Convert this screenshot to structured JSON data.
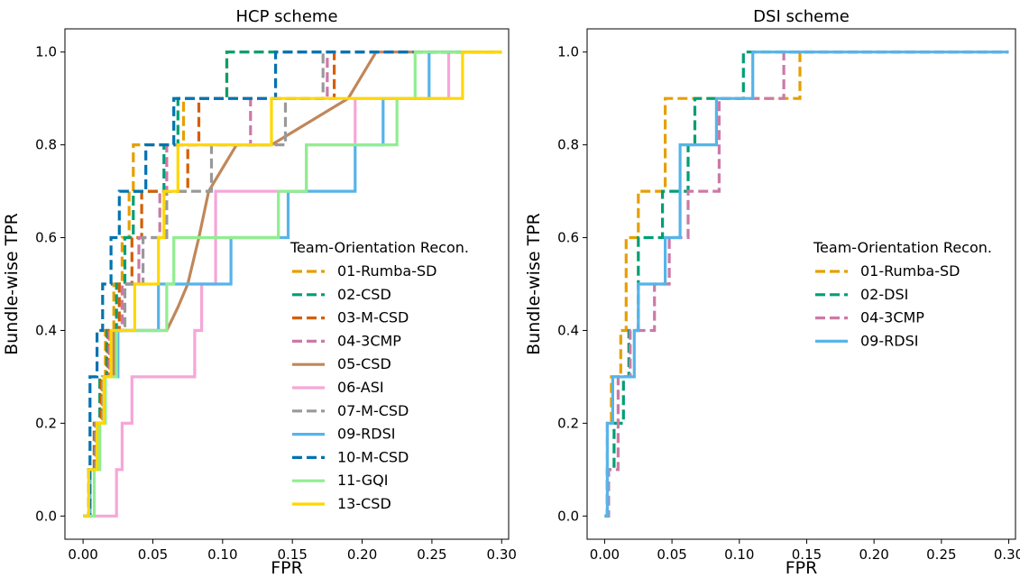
{
  "chart_data": [
    {
      "type": "line",
      "title": "HCP scheme",
      "xlabel": "FPR",
      "ylabel": "Bundle-wise TPR",
      "xlim": [
        -0.013,
        0.305
      ],
      "ylim": [
        -0.05,
        1.05
      ],
      "xticks": [
        "0.00",
        "0.05",
        "0.10",
        "0.15",
        "0.20",
        "0.25",
        "0.30"
      ],
      "yticks": [
        "0.0",
        "0.2",
        "0.4",
        "0.6",
        "0.8",
        "1.0"
      ],
      "grid": false,
      "legend_title": "Team-Orientation Recon.",
      "legend_position": "center-right",
      "series": [
        {
          "name": "01-Rumba-SD",
          "color": "#E69F00",
          "dash": true,
          "x": [
            0,
            0.004,
            0.004,
            0.008,
            0.008,
            0.012,
            0.012,
            0.016,
            0.016,
            0.022,
            0.022,
            0.028,
            0.028,
            0.033,
            0.033,
            0.036,
            0.036,
            0.04,
            0.04,
            0.072,
            0.072,
            0.103,
            0.103,
            0.3
          ],
          "y": [
            0,
            0,
            0.1,
            0.1,
            0.2,
            0.2,
            0.3,
            0.3,
            0.4,
            0.4,
            0.5,
            0.5,
            0.6,
            0.6,
            0.7,
            0.7,
            0.8,
            0.8,
            0.8,
            0.8,
            0.9,
            0.9,
            1.0,
            1.0
          ]
        },
        {
          "name": "02-CSD",
          "color": "#009E73",
          "dash": true,
          "x": [
            0,
            0.004,
            0.004,
            0.008,
            0.008,
            0.012,
            0.012,
            0.017,
            0.017,
            0.024,
            0.024,
            0.03,
            0.03,
            0.036,
            0.036,
            0.058,
            0.058,
            0.068,
            0.068,
            0.103,
            0.103,
            0.3
          ],
          "y": [
            0,
            0,
            0.1,
            0.1,
            0.2,
            0.2,
            0.3,
            0.3,
            0.4,
            0.4,
            0.5,
            0.5,
            0.6,
            0.6,
            0.7,
            0.7,
            0.8,
            0.8,
            0.9,
            0.9,
            1.0,
            1.0
          ]
        },
        {
          "name": "03-M-CSD",
          "color": "#D55E00",
          "dash": true,
          "x": [
            0,
            0.004,
            0.004,
            0.008,
            0.008,
            0.013,
            0.013,
            0.018,
            0.018,
            0.026,
            0.026,
            0.035,
            0.035,
            0.042,
            0.042,
            0.075,
            0.075,
            0.083,
            0.083,
            0.18,
            0.18,
            0.195,
            0.195,
            0.3
          ],
          "y": [
            0,
            0,
            0.1,
            0.1,
            0.2,
            0.2,
            0.3,
            0.3,
            0.4,
            0.4,
            0.5,
            0.5,
            0.6,
            0.6,
            0.7,
            0.7,
            0.8,
            0.8,
            0.9,
            0.9,
            1.0,
            1.0,
            1.0,
            1.0
          ]
        },
        {
          "name": "04-3CMP",
          "color": "#CC79A7",
          "dash": true,
          "x": [
            0,
            0.004,
            0.004,
            0.009,
            0.009,
            0.014,
            0.014,
            0.019,
            0.019,
            0.028,
            0.028,
            0.04,
            0.04,
            0.055,
            0.055,
            0.06,
            0.06,
            0.12,
            0.12,
            0.175,
            0.175,
            0.3
          ],
          "y": [
            0,
            0,
            0.1,
            0.1,
            0.2,
            0.2,
            0.3,
            0.3,
            0.4,
            0.4,
            0.5,
            0.5,
            0.6,
            0.6,
            0.7,
            0.7,
            0.8,
            0.8,
            0.9,
            0.9,
            1.0,
            1.0
          ]
        },
        {
          "name": "05-CSD",
          "color": "#C0875A",
          "dash": false,
          "x": [
            0,
            0.005,
            0.005,
            0.01,
            0.01,
            0.015,
            0.015,
            0.022,
            0.022,
            0.06,
            0.068,
            0.075,
            0.083,
            0.09,
            0.11,
            0.135,
            0.19,
            0.21,
            0.3
          ],
          "y": [
            0,
            0,
            0.1,
            0.1,
            0.2,
            0.2,
            0.3,
            0.3,
            0.4,
            0.4,
            0.45,
            0.5,
            0.6,
            0.7,
            0.8,
            0.8,
            0.9,
            1.0,
            1.0
          ]
        },
        {
          "name": "06-ASI",
          "color": "#F6A6D8",
          "dash": false,
          "x": [
            0,
            0.024,
            0.024,
            0.028,
            0.028,
            0.035,
            0.035,
            0.075,
            0.075,
            0.08,
            0.08,
            0.085,
            0.085,
            0.095,
            0.095,
            0.16,
            0.16,
            0.195,
            0.195,
            0.262,
            0.262,
            0.3
          ],
          "y": [
            0,
            0,
            0.1,
            0.1,
            0.2,
            0.2,
            0.3,
            0.3,
            0.3,
            0.3,
            0.4,
            0.4,
            0.5,
            0.5,
            0.7,
            0.7,
            0.8,
            0.8,
            0.9,
            0.9,
            1.0,
            1.0
          ]
        },
        {
          "name": "07-M-CSD",
          "color": "#999999",
          "dash": true,
          "x": [
            0,
            0.004,
            0.004,
            0.009,
            0.009,
            0.014,
            0.014,
            0.02,
            0.02,
            0.03,
            0.03,
            0.043,
            0.043,
            0.06,
            0.06,
            0.092,
            0.092,
            0.145,
            0.145,
            0.172,
            0.172,
            0.3
          ],
          "y": [
            0,
            0,
            0.1,
            0.1,
            0.2,
            0.2,
            0.3,
            0.3,
            0.4,
            0.4,
            0.5,
            0.5,
            0.6,
            0.6,
            0.7,
            0.7,
            0.8,
            0.8,
            0.9,
            0.9,
            1.0,
            1.0
          ]
        },
        {
          "name": "09-RDSI",
          "color": "#56B4E9",
          "dash": false,
          "x": [
            0,
            0.005,
            0.005,
            0.01,
            0.01,
            0.016,
            0.016,
            0.025,
            0.025,
            0.054,
            0.054,
            0.106,
            0.106,
            0.147,
            0.147,
            0.195,
            0.195,
            0.215,
            0.215,
            0.248,
            0.248,
            0.3
          ],
          "y": [
            0,
            0,
            0.1,
            0.1,
            0.2,
            0.2,
            0.3,
            0.3,
            0.4,
            0.4,
            0.5,
            0.5,
            0.6,
            0.6,
            0.7,
            0.7,
            0.8,
            0.8,
            0.9,
            0.9,
            1.0,
            1.0
          ]
        },
        {
          "name": "10-M-CSD",
          "color": "#0072B2",
          "dash": true,
          "x": [
            0,
            0.005,
            0.005,
            0.01,
            0.01,
            0.014,
            0.014,
            0.02,
            0.02,
            0.026,
            0.026,
            0.045,
            0.045,
            0.065,
            0.065,
            0.138,
            0.138,
            0.235,
            0.235,
            0.3
          ],
          "y": [
            0,
            0,
            0.3,
            0.3,
            0.4,
            0.4,
            0.5,
            0.5,
            0.6,
            0.6,
            0.7,
            0.7,
            0.8,
            0.8,
            0.9,
            0.9,
            1.0,
            1.0,
            1.0,
            1.0
          ]
        },
        {
          "name": "11-GQI",
          "color": "#90EE90",
          "dash": false,
          "x": [
            0,
            0.008,
            0.008,
            0.012,
            0.012,
            0.016,
            0.016,
            0.024,
            0.024,
            0.06,
            0.06,
            0.065,
            0.065,
            0.14,
            0.14,
            0.16,
            0.16,
            0.225,
            0.225,
            0.238,
            0.238,
            0.3
          ],
          "y": [
            0,
            0,
            0.1,
            0.1,
            0.2,
            0.2,
            0.3,
            0.3,
            0.4,
            0.4,
            0.5,
            0.5,
            0.6,
            0.6,
            0.7,
            0.7,
            0.8,
            0.8,
            0.9,
            0.9,
            1.0,
            1.0
          ]
        },
        {
          "name": "13-CSD",
          "color": "#FFD700",
          "dash": false,
          "x": [
            0,
            0.004,
            0.004,
            0.01,
            0.01,
            0.015,
            0.015,
            0.02,
            0.02,
            0.037,
            0.037,
            0.054,
            0.054,
            0.058,
            0.058,
            0.068,
            0.068,
            0.135,
            0.135,
            0.272,
            0.272,
            0.3
          ],
          "y": [
            0,
            0,
            0.1,
            0.1,
            0.2,
            0.2,
            0.3,
            0.3,
            0.4,
            0.4,
            0.5,
            0.5,
            0.6,
            0.6,
            0.7,
            0.7,
            0.8,
            0.8,
            0.9,
            0.9,
            1.0,
            1.0
          ]
        }
      ]
    },
    {
      "type": "line",
      "title": "DSI scheme",
      "xlabel": "FPR",
      "ylabel": "Bundle-wise TPR",
      "xlim": [
        -0.013,
        0.305
      ],
      "ylim": [
        -0.05,
        1.05
      ],
      "xticks": [
        "0.00",
        "0.05",
        "0.10",
        "0.15",
        "0.20",
        "0.25",
        "0.30"
      ],
      "yticks": [
        "0.0",
        "0.2",
        "0.4",
        "0.6",
        "0.8",
        "1.0"
      ],
      "grid": false,
      "legend_title": "Team-Orientation Recon.",
      "legend_position": "center-right",
      "series": [
        {
          "name": "01-Rumba-SD",
          "color": "#E69F00",
          "dash": true,
          "x": [
            0,
            0.002,
            0.002,
            0.005,
            0.005,
            0.012,
            0.012,
            0.016,
            0.016,
            0.025,
            0.025,
            0.045,
            0.045,
            0.145,
            0.145,
            0.3
          ],
          "y": [
            0,
            0,
            0.2,
            0.2,
            0.3,
            0.3,
            0.4,
            0.4,
            0.6,
            0.6,
            0.7,
            0.7,
            0.9,
            0.9,
            1.0,
            1.0
          ]
        },
        {
          "name": "02-DSI",
          "color": "#009E73",
          "dash": true,
          "x": [
            0,
            0.002,
            0.002,
            0.007,
            0.007,
            0.014,
            0.014,
            0.018,
            0.018,
            0.025,
            0.025,
            0.043,
            0.043,
            0.062,
            0.062,
            0.067,
            0.067,
            0.103,
            0.103,
            0.3
          ],
          "y": [
            0,
            0,
            0.1,
            0.1,
            0.2,
            0.2,
            0.3,
            0.3,
            0.4,
            0.4,
            0.6,
            0.6,
            0.7,
            0.7,
            0.8,
            0.8,
            0.9,
            0.9,
            1.0,
            1.0
          ]
        },
        {
          "name": "04-3CMP",
          "color": "#CC79A7",
          "dash": true,
          "x": [
            0,
            0.003,
            0.003,
            0.01,
            0.01,
            0.019,
            0.019,
            0.03,
            0.03,
            0.037,
            0.037,
            0.048,
            0.048,
            0.062,
            0.062,
            0.065,
            0.065,
            0.085,
            0.085,
            0.105,
            0.105,
            0.133,
            0.133,
            0.3
          ],
          "y": [
            0,
            0,
            0.1,
            0.1,
            0.3,
            0.3,
            0.4,
            0.4,
            0.4,
            0.4,
            0.5,
            0.5,
            0.6,
            0.6,
            0.7,
            0.7,
            0.7,
            0.7,
            0.9,
            0.9,
            0.9,
            0.9,
            1.0,
            1.0
          ]
        },
        {
          "name": "09-RDSI",
          "color": "#56B4E9",
          "dash": false,
          "x": [
            0,
            0.002,
            0.002,
            0.006,
            0.006,
            0.022,
            0.022,
            0.025,
            0.025,
            0.045,
            0.045,
            0.056,
            0.056,
            0.083,
            0.083,
            0.11,
            0.11,
            0.145,
            0.145,
            0.3
          ],
          "y": [
            0,
            0,
            0.2,
            0.2,
            0.3,
            0.3,
            0.4,
            0.4,
            0.5,
            0.5,
            0.6,
            0.6,
            0.8,
            0.8,
            0.9,
            0.9,
            1.0,
            1.0,
            1.0,
            1.0
          ]
        }
      ]
    }
  ]
}
